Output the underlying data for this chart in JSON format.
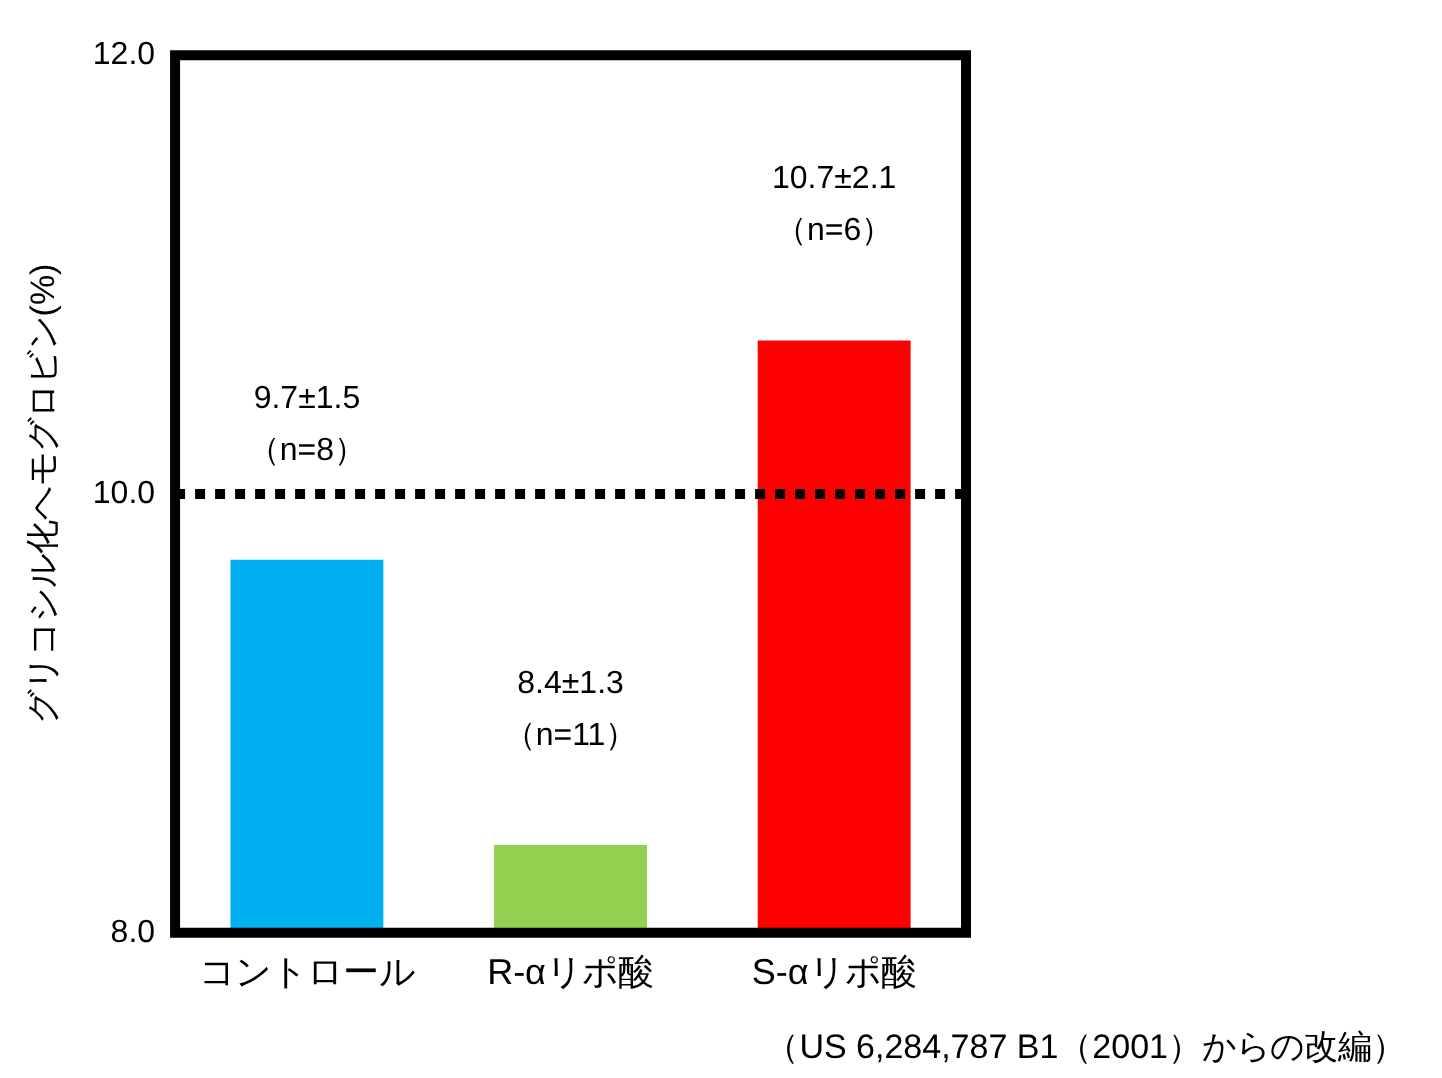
{
  "chart_data": {
    "type": "bar",
    "ylabel": "グリコシル化ヘモグロビン(%)",
    "categories": [
      "コントロール",
      "R-αリポ酸",
      "S-αリポ酸"
    ],
    "values": [
      9.7,
      8.4,
      10.7
    ],
    "colors": [
      "#00b0f0",
      "#92d050",
      "#ff0000"
    ],
    "value_labels": [
      "9.7±1.5\n（n=8）",
      "8.4±1.3\n（n=11）",
      "10.7±2.1\n（n=6）"
    ],
    "ylim": [
      8,
      12
    ],
    "yticks": [
      {
        "value": 8,
        "label": "8.0"
      },
      {
        "value": 10,
        "label": "10.0"
      },
      {
        "value": 12,
        "label": "12.0"
      }
    ],
    "ref_lines": [
      {
        "axis": "y",
        "value": 10,
        "color": "#000000",
        "line_style": "dotted"
      }
    ],
    "grid": false,
    "legend": false,
    "annotations": [
      "（US 6,284,787 B1（2001）からの改編）"
    ]
  }
}
